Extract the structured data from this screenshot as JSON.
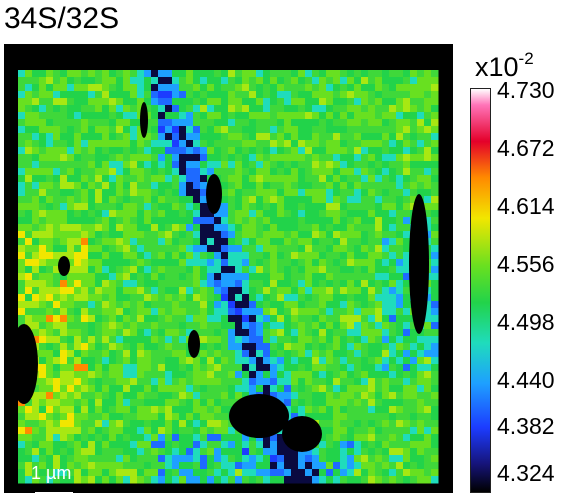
{
  "chart_data": {
    "type": "heatmap",
    "title": "34S/32S",
    "colorbar": {
      "multiplier_base": "x10",
      "multiplier_exponent": "-2",
      "ticks": [
        "4.730",
        "4.672",
        "4.614",
        "4.556",
        "4.498",
        "4.440",
        "4.382",
        "4.324"
      ],
      "range": [
        4.324,
        4.73
      ],
      "colormap": [
        "#ffffff",
        "#ff73b8",
        "#e4002a",
        "#ff8a00",
        "#f2e600",
        "#68e020",
        "#22d34a",
        "#1fdcbc",
        "#1ea0ff",
        "#1c3cff",
        "#16147a",
        "#000000"
      ]
    },
    "scale_bar": {
      "label": "1 µm"
    },
    "background": "#000000"
  }
}
